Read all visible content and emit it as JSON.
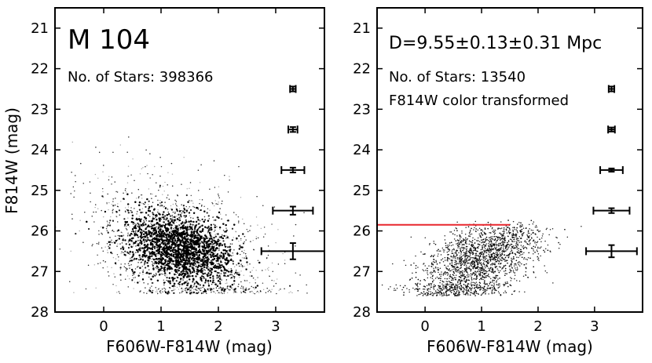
{
  "chart_data": [
    {
      "type": "scatter",
      "panel_label": "M 104",
      "stars_text": "No. of Stars: 398366",
      "xlabel": "F606W-F814W (mag)",
      "ylabel": "F814W (mag)",
      "xlim": [
        -0.85,
        3.85
      ],
      "ylim": [
        28,
        20.5
      ],
      "x_ticks": [
        0,
        1,
        2,
        3
      ],
      "y_ticks": [
        21,
        22,
        23,
        24,
        25,
        26,
        27,
        28
      ],
      "density": "very dense cloud of stars, core near color 1.2-1.6 and magnitude 26-27",
      "error_bars": [
        {
          "x": 3.3,
          "y": 22.5,
          "xerr": 0.05,
          "yerr": 0.06
        },
        {
          "x": 3.3,
          "y": 23.5,
          "xerr": 0.08,
          "yerr": 0.06
        },
        {
          "x": 3.3,
          "y": 24.5,
          "xerr": 0.2,
          "yerr": 0.06
        },
        {
          "x": 3.3,
          "y": 25.5,
          "xerr": 0.35,
          "yerr": 0.1
        },
        {
          "x": 3.3,
          "y": 26.5,
          "xerr": 0.55,
          "yerr": 0.2
        }
      ]
    },
    {
      "type": "scatter",
      "distance_text": "D=9.55±0.13±0.31 Mpc",
      "stars_text": "No. of Stars: 13540",
      "note_text": "F814W color transformed",
      "xlabel": "F606W-F814W (mag)",
      "xlim": [
        -0.85,
        3.85
      ],
      "ylim": [
        28,
        20.5
      ],
      "x_ticks": [
        0,
        1,
        2,
        3
      ],
      "y_ticks": [
        21,
        22,
        23,
        24,
        25,
        26,
        27,
        28
      ],
      "trgb_line": {
        "y": 25.85,
        "x_start": -0.85,
        "x_end": 1.5,
        "color": "#e8262d"
      },
      "error_bars": [
        {
          "x": 3.3,
          "y": 22.5,
          "xerr": 0.05,
          "yerr": 0.06
        },
        {
          "x": 3.3,
          "y": 23.5,
          "xerr": 0.06,
          "yerr": 0.05
        },
        {
          "x": 3.3,
          "y": 24.5,
          "xerr": 0.2,
          "yerr": 0.04
        },
        {
          "x": 3.3,
          "y": 25.5,
          "xerr": 0.32,
          "yerr": 0.06
        },
        {
          "x": 3.3,
          "y": 26.5,
          "xerr": 0.45,
          "yerr": 0.15
        }
      ]
    }
  ]
}
